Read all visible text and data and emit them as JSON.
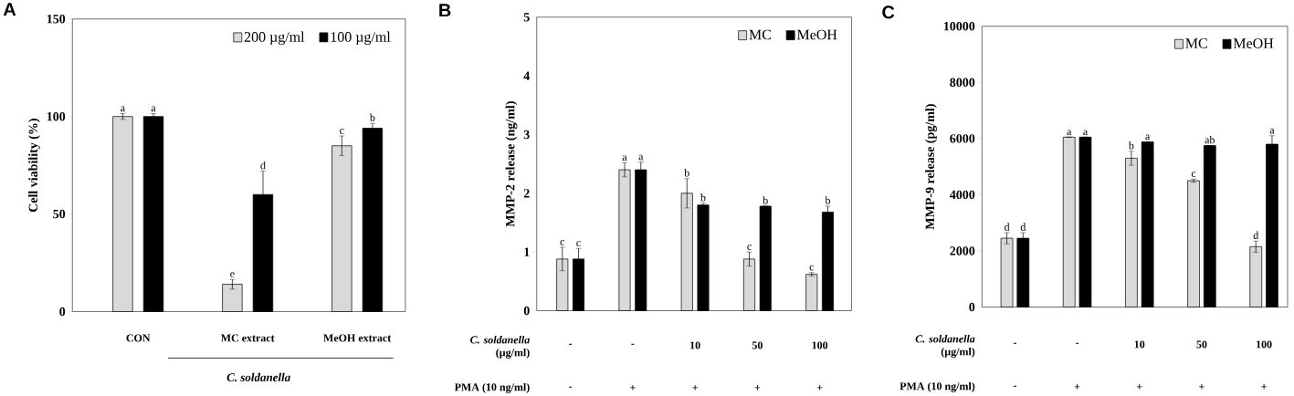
{
  "chart_data": [
    {
      "type": "bar",
      "title": "A",
      "ylabel": "Cell viability (%)",
      "categories": [
        "CON",
        "MC extract",
        "MeOH extract"
      ],
      "ylim": [
        0,
        150
      ],
      "yticks": [
        0,
        50,
        100,
        150
      ],
      "legend": "top right",
      "annotations": [
        "C. soldanella"
      ],
      "series": [
        {
          "name": "200 µg/ml",
          "color": "#d9d9d9",
          "values": [
            100,
            14,
            85
          ],
          "errors": [
            1.5,
            2.5,
            5
          ],
          "value_labels": [
            "a",
            "e",
            "c"
          ]
        },
        {
          "name": "100 µg/ml",
          "color": "#000000",
          "values": [
            100,
            60,
            94
          ],
          "errors": [
            1.5,
            12,
            2.5
          ],
          "value_labels": [
            "a",
            "d",
            "b"
          ]
        }
      ]
    },
    {
      "type": "bar",
      "title": "B",
      "ylabel": "MMP-2 release (ng/ml)",
      "xlabel": "*C. soldanella* (µg/ml)",
      "categories": [
        "-",
        "-",
        "10",
        "50",
        "100"
      ],
      "ylim": [
        0,
        5
      ],
      "yticks": [
        0,
        1,
        2,
        3,
        4,
        5
      ],
      "legend": "top right",
      "annotations": [
        "PMA (10 ng/ml)",
        "-",
        "+",
        "+",
        "+",
        "+"
      ],
      "series": [
        {
          "name": "MC",
          "color": "#d9d9d9",
          "values": [
            0.88,
            2.4,
            2.0,
            0.88,
            0.62
          ],
          "errors": [
            0.2,
            0.12,
            0.25,
            0.12,
            0.03
          ],
          "value_labels": [
            "c",
            "a",
            "b",
            "c",
            "c"
          ]
        },
        {
          "name": "MeOH",
          "color": "#000000",
          "values": [
            0.88,
            2.4,
            1.8,
            1.78,
            1.68
          ],
          "errors": [
            0.18,
            0.13,
            0.03,
            null,
            0.1
          ],
          "value_labels": [
            "c",
            "a",
            "b",
            "b",
            "b"
          ]
        }
      ]
    },
    {
      "type": "bar",
      "title": "C",
      "ylabel": "MMP-9 release (pg/ml)",
      "xlabel": "*C. soldanella* (µg/ml)",
      "categories": [
        "-",
        "-",
        "10",
        "50",
        "100"
      ],
      "ylim": [
        0,
        10000
      ],
      "yticks": [
        0,
        2000,
        4000,
        6000,
        8000,
        10000
      ],
      "legend": "top right",
      "annotations": [
        "PMA (10 ng/ml)",
        "-",
        "+",
        "+",
        "+",
        "+"
      ],
      "series": [
        {
          "name": "MC",
          "color": "#d9d9d9",
          "values": [
            2450,
            6050,
            5300,
            4500,
            2150
          ],
          "errors": [
            200,
            null,
            250,
            60,
            200
          ],
          "value_labels": [
            "d",
            "a",
            "b",
            "c",
            "d"
          ]
        },
        {
          "name": "MeOH",
          "color": "#000000",
          "values": [
            2450,
            6050,
            5880,
            5750,
            5800
          ],
          "errors": [
            200,
            null,
            null,
            null,
            300
          ],
          "value_labels": [
            "d",
            "a",
            "a",
            "ab",
            "a"
          ]
        }
      ]
    }
  ]
}
